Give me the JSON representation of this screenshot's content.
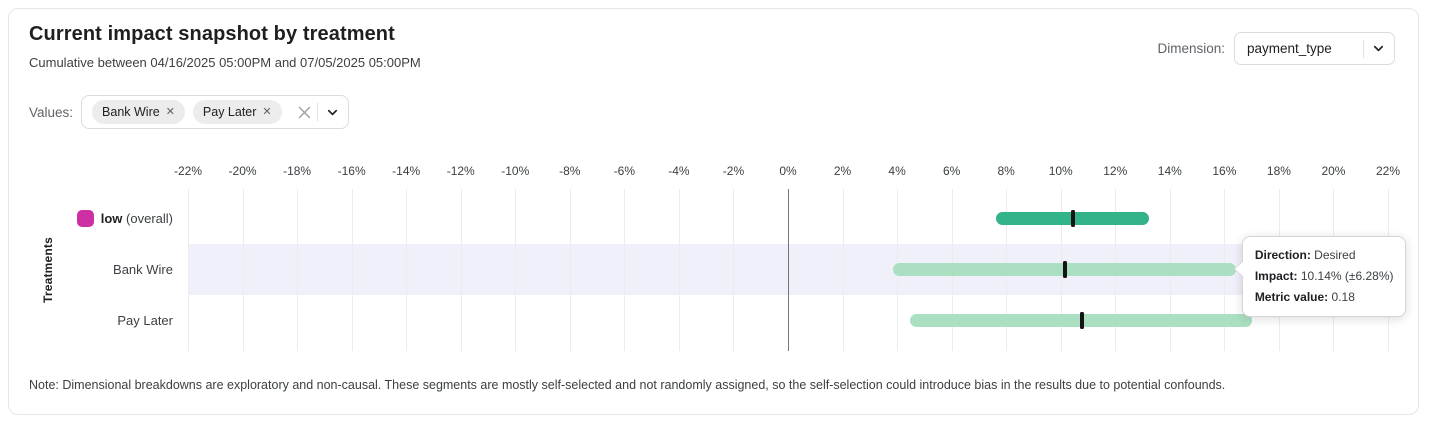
{
  "header": {
    "title": "Current impact snapshot by treatment",
    "subtitle": "Cumulative between 04/16/2025 05:00PM and 07/05/2025 05:00PM",
    "dimension_label": "Dimension:",
    "dimension_value": "payment_type"
  },
  "filters": {
    "values_label": "Values:",
    "chips": [
      {
        "label": "Bank Wire"
      },
      {
        "label": "Pay Later"
      }
    ]
  },
  "chart_data": {
    "type": "bar",
    "subtype": "horizontal-interval",
    "title": "Current impact snapshot by treatment",
    "xlabel": "",
    "ylabel": "Treatments",
    "x_axis": {
      "min": -22,
      "max": 22,
      "step": 2,
      "unit": "%",
      "tick_labels": [
        "-22%",
        "-20%",
        "-18%",
        "-16%",
        "-14%",
        "-12%",
        "-10%",
        "-8%",
        "-6%",
        "-4%",
        "-2%",
        "0%",
        "2%",
        "4%",
        "6%",
        "8%",
        "10%",
        "12%",
        "14%",
        "16%",
        "18%",
        "20%",
        "22%"
      ]
    },
    "grid": true,
    "rows": [
      {
        "label": "low",
        "label_suffix": "(overall)",
        "legend_color": "#CE2FA5",
        "impact_pct": 10.45,
        "ci_low_pct": 7.63,
        "ci_high_pct": 13.24,
        "bar_color": "#33B389",
        "highlighted": false
      },
      {
        "label": "Bank Wire",
        "label_suffix": "",
        "impact_pct": 10.14,
        "ci_low_pct": 3.86,
        "ci_high_pct": 16.42,
        "bar_color": "#ABDFC1",
        "highlighted": true
      },
      {
        "label": "Pay Later",
        "label_suffix": "",
        "impact_pct": 10.78,
        "ci_low_pct": 4.47,
        "ci_high_pct": 17.01,
        "bar_color": "#ABDFC1",
        "highlighted": false
      }
    ]
  },
  "tooltip": {
    "direction_label": "Direction:",
    "direction_value": "Desired",
    "impact_label": "Impact:",
    "impact_value": "10.14% (±6.28%)",
    "metric_label": "Metric value:",
    "metric_value": "0.18"
  },
  "note": "Note: Dimensional breakdowns are exploratory and non-causal. These segments are mostly self-selected and not randomly assigned, so the self-selection could introduce bias in the results due to potential confounds.",
  "colors": {
    "overall_bar": "#33B389",
    "segment_bar": "#ABDFC1",
    "legend_magenta": "#CE2FA5",
    "row_highlight": "#F0F0FB",
    "gridline": "#ECECEC",
    "zero_line": "#757575",
    "marker": "#141414"
  }
}
